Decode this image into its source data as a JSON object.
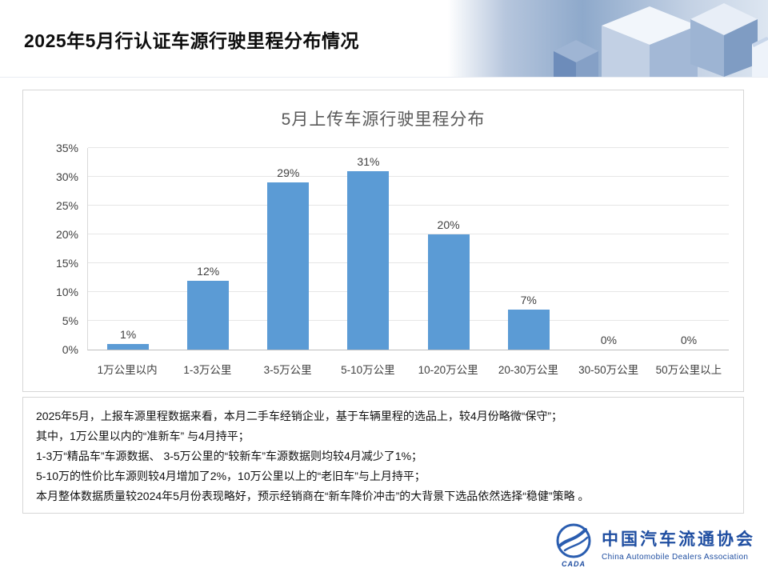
{
  "slide": {
    "title": "2025年5月行认证车源行驶里程分布情况"
  },
  "chart_data": {
    "type": "bar",
    "title": "5月上传车源行驶里程分布",
    "categories": [
      "1万公里以内",
      "1-3万公里",
      "3-5万公里",
      "5-10万公里",
      "10-20万公里",
      "20-30万公里",
      "30-50万公里",
      "50万公里以上"
    ],
    "values": [
      1,
      12,
      29,
      31,
      20,
      7,
      0,
      0
    ],
    "value_labels": [
      "1%",
      "12%",
      "29%",
      "31%",
      "20%",
      "7%",
      "0%",
      "0%"
    ],
    "xlabel": "",
    "ylabel": "",
    "ylim": [
      0,
      35
    ],
    "yticks": [
      "0%",
      "5%",
      "10%",
      "15%",
      "20%",
      "25%",
      "30%",
      "35%"
    ],
    "grid": true,
    "legend": "none",
    "bar_color": "#5B9BD5"
  },
  "analysis": {
    "lines": [
      "2025年5月，上报车源里程数据来看，本月二手车经销企业，基于车辆里程的选品上，较4月份略微“保守”；",
      "其中，1万公里以内的“准新车” 与4月持平；",
      "1-3万“精品车”车源数据、 3-5万公里的“较新车”车源数据则均较4月减少了1%；",
      "5-10万的性价比车源则较4月增加了2%，10万公里以上的“老旧车”与上月持平；",
      "本月整体数据质量较2024年5月份表现略好，预示经销商在“新车降价冲击”的大背景下选品依然选择“稳健”策略 。"
    ]
  },
  "footer": {
    "org_cn": "中国汽车流通协会",
    "org_en": "China Automobile Dealers Association",
    "logo_text": "CADA"
  },
  "colors": {
    "bar": "#5B9BD5",
    "brand_blue": "#1F4EA1",
    "chart_title_gray": "#595959"
  }
}
